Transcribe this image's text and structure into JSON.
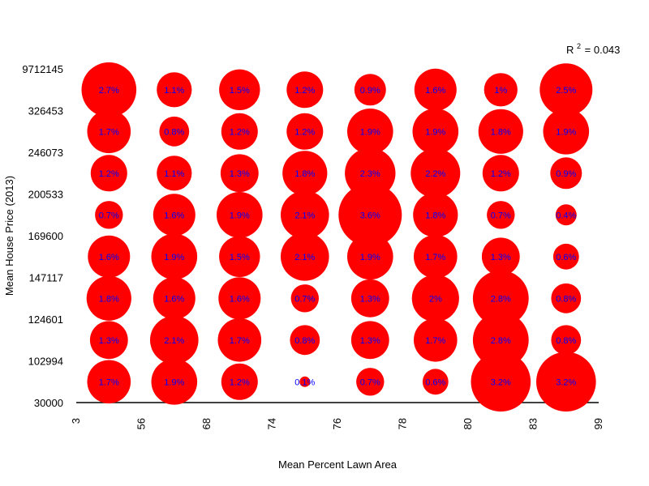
{
  "chart_data": {
    "type": "bubble-grid",
    "xlabel": "Mean Percent Lawn Area",
    "ylabel": "Mean House Price (2013)",
    "x_ticks": [
      "3",
      "56",
      "68",
      "74",
      "76",
      "78",
      "80",
      "83",
      "99"
    ],
    "y_ticks": [
      "30000",
      "102994",
      "124601",
      "147117",
      "169600",
      "200533",
      "246073",
      "326453",
      "9712145"
    ],
    "annotation": {
      "prefix": "R",
      "sup": "2",
      "suffix": "= 0.043"
    },
    "bubble_color": "#ff0000",
    "label_color": "#0000ff",
    "rows": [
      {
        "values": [
          1.7,
          1.9,
          1.2,
          0.1,
          0.7,
          0.6,
          3.2,
          3.2
        ],
        "labels": [
          "1.7%",
          "1.9%",
          "1.2%",
          "0.1%",
          "0.7%",
          "0.6%",
          "3.2%",
          "3.2%"
        ]
      },
      {
        "values": [
          1.3,
          2.1,
          1.7,
          0.8,
          1.3,
          1.7,
          2.8,
          0.8
        ],
        "labels": [
          "1.3%",
          "2.1%",
          "1.7%",
          "0.8%",
          "1.3%",
          "1.7%",
          "2.8%",
          "0.8%"
        ]
      },
      {
        "values": [
          1.8,
          1.6,
          1.6,
          0.7,
          1.3,
          2.0,
          2.8,
          0.8
        ],
        "labels": [
          "1.8%",
          "1.6%",
          "1.6%",
          "0.7%",
          "1.3%",
          "2%",
          "2.8%",
          "0.8%"
        ]
      },
      {
        "values": [
          1.6,
          1.9,
          1.5,
          2.1,
          1.9,
          1.7,
          1.3,
          0.6
        ],
        "labels": [
          "1.6%",
          "1.9%",
          "1.5%",
          "2.1%",
          "1.9%",
          "1.7%",
          "1.3%",
          "0.6%"
        ]
      },
      {
        "values": [
          0.7,
          1.6,
          1.9,
          2.1,
          3.6,
          1.8,
          0.7,
          0.4
        ],
        "labels": [
          "0.7%",
          "1.6%",
          "1.9%",
          "2.1%",
          "3.6%",
          "1.8%",
          "0.7%",
          "0.4%"
        ]
      },
      {
        "values": [
          1.2,
          1.1,
          1.3,
          1.8,
          2.3,
          2.2,
          1.2,
          0.9
        ],
        "labels": [
          "1.2%",
          "1.1%",
          "1.3%",
          "1.8%",
          "2.3%",
          "2.2%",
          "1.2%",
          "0.9%"
        ]
      },
      {
        "values": [
          1.7,
          0.8,
          1.2,
          1.2,
          1.9,
          1.9,
          1.8,
          1.9
        ],
        "labels": [
          "1.7%",
          "0.8%",
          "1.2%",
          "1.2%",
          "1.9%",
          "1.9%",
          "1.8%",
          "1.9%"
        ]
      },
      {
        "values": [
          2.7,
          1.1,
          1.5,
          1.2,
          0.9,
          1.6,
          1.0,
          2.5
        ],
        "labels": [
          "2.7%",
          "1.1%",
          "1.5%",
          "1.2%",
          "0.9%",
          "1.6%",
          "1%",
          "2.5%"
        ]
      }
    ]
  }
}
